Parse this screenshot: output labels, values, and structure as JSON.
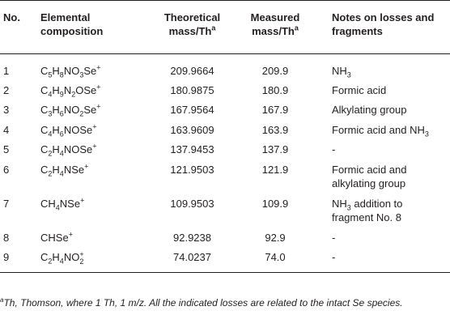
{
  "headers": {
    "no": "No.",
    "comp": "Elemental composition",
    "theo_a": "Theoretical",
    "theo_b": "mass/Th",
    "meas_a": "Measured",
    "meas_b": "mass/Th",
    "sup": "a",
    "notes": "Notes on losses and fragments"
  },
  "rows": [
    {
      "no": "1",
      "comp_html": "C<sub>5</sub>H<sub>8</sub>NO<sub>3</sub>Se<sup>+</sup>",
      "theo": "209.9664",
      "meas": "209.9",
      "notes_html": "NH<sub>3</sub>"
    },
    {
      "no": "2",
      "comp_html": "C<sub>4</sub>H<sub>9</sub>N<sub>2</sub>OSe<sup>+</sup>",
      "theo": "180.9875",
      "meas": "180.9",
      "notes_html": "Formic acid"
    },
    {
      "no": "3",
      "comp_html": "C<sub>3</sub>H<sub>6</sub>NO<sub>2</sub>Se<sup>+</sup>",
      "theo": "167.9564",
      "meas": "167.9",
      "notes_html": "Alkylating group"
    },
    {
      "no": "4",
      "comp_html": "C<sub>4</sub>H<sub>6</sub>NOSe<sup>+</sup>",
      "theo": "163.9609",
      "meas": "163.9",
      "notes_html": "Formic acid and NH<sub>3</sub>"
    },
    {
      "no": "5",
      "comp_html": "C<sub>2</sub>H<sub>4</sub>NOSe<sup>+</sup>",
      "theo": "137.9453",
      "meas": "137.9",
      "notes_html": "-"
    },
    {
      "no": "6",
      "comp_html": "C<sub>2</sub>H<sub>4</sub>NSe<sup>+</sup>",
      "theo": "121.9503",
      "meas": "121.9",
      "notes_html": "Formic acid and<br>alkylating group"
    },
    {
      "no": "7",
      "comp_html": "CH<sub>4</sub>NSe<sup>+</sup>",
      "theo": "109.9503",
      "meas": "109.9",
      "notes_html": "NH<sub>3</sub> addition to<br>fragment No. 8"
    },
    {
      "no": "8",
      "comp_html": "CHSe<sup>+</sup>",
      "theo": "92.9238",
      "meas": "92.9",
      "notes_html": "-"
    },
    {
      "no": "9",
      "comp_html": "C<sub>2</sub>H<sub>4</sub>NO<span class=\"stack\"><span>+</span><span>2</span></span>",
      "theo": "74.0237",
      "meas": "74.0",
      "notes_html": "-"
    }
  ],
  "footnote": {
    "sup": "a",
    "text": "Th, Thomson, where 1 Th, 1 m/z. All the indicated losses are related to the intact Se species."
  }
}
